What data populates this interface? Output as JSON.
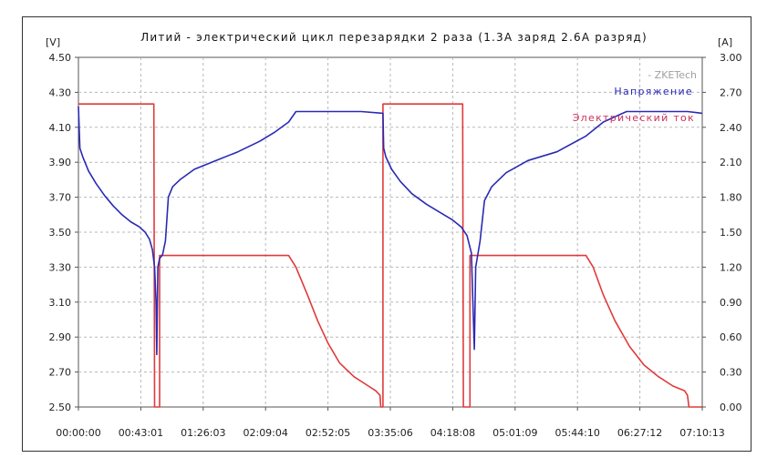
{
  "chart_data": {
    "type": "line",
    "title": "Литий - электрический цикл перезарядки 2 раза (1.3A заряд 2.6A разряд)",
    "watermark": "- ZKETech",
    "y_left_unit": "[V]",
    "y_right_unit": "[A]",
    "ylim_left": [
      2.5,
      4.5
    ],
    "ylim_right": [
      0.0,
      3.0
    ],
    "y_left_ticks": [
      "4.50",
      "4.30",
      "4.10",
      "3.90",
      "3.70",
      "3.50",
      "3.30",
      "3.10",
      "2.90",
      "2.70",
      "2.50"
    ],
    "y_right_ticks": [
      "3.00",
      "2.70",
      "2.40",
      "2.10",
      "1.80",
      "1.50",
      "1.20",
      "0.90",
      "0.60",
      "0.30",
      "0.00"
    ],
    "x_ticks": [
      "00:00:00",
      "00:43:01",
      "01:26:03",
      "02:09:04",
      "02:52:05",
      "03:35:06",
      "04:18:08",
      "05:01:09",
      "05:44:10",
      "06:27:12",
      "07:10:13"
    ],
    "xlim_minutes": [
      0,
      430.2
    ],
    "grid": true,
    "legend_position": "top-right",
    "colors": {
      "voltage": "#2a2ab4",
      "current": "#e03a3a",
      "grid": "#b8b8b8"
    },
    "series": [
      {
        "name": "Напряжение",
        "axis": "left",
        "x": [
          0,
          1,
          3,
          7,
          12,
          18,
          24,
          30,
          36,
          42,
          46,
          49,
          51,
          52.5,
          53.5,
          54,
          54.8,
          56,
          58,
          60,
          62,
          65,
          70,
          80,
          95,
          110,
          125,
          135,
          145,
          150,
          170,
          195,
          210,
          210.5,
          212,
          216,
          222,
          230,
          240,
          250,
          258,
          264,
          268,
          271,
          272,
          273,
          274,
          275,
          277,
          280,
          285,
          295,
          310,
          330,
          350,
          362,
          378,
          400,
          420,
          430
        ],
        "y": [
          4.22,
          3.98,
          3.93,
          3.85,
          3.78,
          3.71,
          3.65,
          3.6,
          3.56,
          3.53,
          3.5,
          3.46,
          3.4,
          3.3,
          3.1,
          2.8,
          3.3,
          3.35,
          3.37,
          3.45,
          3.7,
          3.76,
          3.8,
          3.86,
          3.91,
          3.96,
          4.02,
          4.07,
          4.13,
          4.19,
          4.19,
          4.19,
          4.18,
          3.98,
          3.93,
          3.86,
          3.79,
          3.72,
          3.66,
          3.61,
          3.57,
          3.53,
          3.48,
          3.38,
          3.1,
          2.83,
          3.3,
          3.35,
          3.45,
          3.68,
          3.76,
          3.84,
          3.91,
          3.96,
          4.05,
          4.13,
          4.19,
          4.19,
          4.19,
          4.18
        ]
      },
      {
        "name": "Электрический ток",
        "axis": "right",
        "x": [
          0,
          52,
          52.5,
          53.5,
          54.5,
          56,
          56,
          60,
          145,
          150,
          158,
          165,
          172,
          180,
          190,
          200,
          205,
          208,
          208.5,
          210,
          210,
          265,
          265.5,
          270,
          270,
          275,
          350,
          355,
          362,
          370,
          380,
          390,
          400,
          410,
          418,
          420,
          421,
          422,
          425,
          430
        ],
        "y": [
          2.6,
          2.6,
          0.0,
          0.0,
          0.0,
          0.0,
          1.3,
          1.3,
          1.3,
          1.2,
          0.96,
          0.74,
          0.55,
          0.38,
          0.26,
          0.18,
          0.14,
          0.1,
          0.0,
          0.0,
          2.6,
          2.6,
          0.0,
          0.0,
          1.3,
          1.3,
          1.3,
          1.2,
          0.96,
          0.74,
          0.52,
          0.36,
          0.26,
          0.18,
          0.14,
          0.1,
          0.0,
          0.0,
          0.0,
          0.0
        ]
      }
    ]
  }
}
